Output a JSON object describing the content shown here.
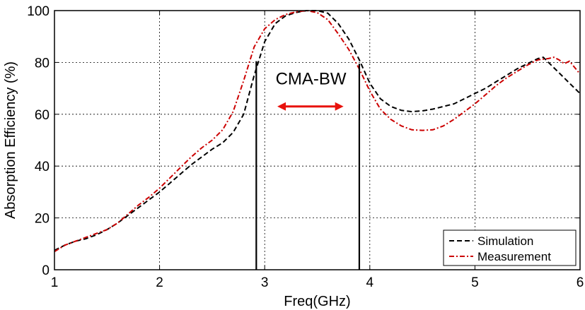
{
  "chart_data": {
    "type": "line",
    "xlabel": "Freq(GHz)",
    "ylabel": "Absorption Efficiency (%)",
    "xlim": [
      1,
      6
    ],
    "ylim": [
      0,
      100
    ],
    "xticks": [
      1,
      2,
      3,
      4,
      5,
      6
    ],
    "yticks": [
      0,
      20,
      40,
      60,
      80,
      100
    ],
    "xtick_labels": [
      "1",
      "2",
      "3",
      "4",
      "5",
      "6"
    ],
    "ytick_labels": [
      "0",
      "20",
      "40",
      "60",
      "80",
      "100"
    ],
    "grid": true,
    "legend": "bottom-right",
    "series": [
      {
        "name": "Simulation",
        "color": "#000000",
        "dash": "dashed",
        "x": [
          1.0,
          1.1,
          1.2,
          1.3,
          1.4,
          1.5,
          1.6,
          1.7,
          1.8,
          1.9,
          2.0,
          2.1,
          2.2,
          2.3,
          2.4,
          2.5,
          2.6,
          2.7,
          2.8,
          2.9,
          3.0,
          3.1,
          3.2,
          3.3,
          3.4,
          3.5,
          3.6,
          3.7,
          3.8,
          3.9,
          4.0,
          4.1,
          4.2,
          4.3,
          4.4,
          4.5,
          4.6,
          4.7,
          4.8,
          4.9,
          5.0,
          5.1,
          5.2,
          5.3,
          5.4,
          5.5,
          5.6,
          5.65,
          5.7,
          5.8,
          5.9,
          6.0
        ],
        "y": [
          7.5,
          9.5,
          11,
          12,
          13.5,
          15.5,
          18,
          21,
          24,
          27,
          30,
          33.5,
          37,
          40.5,
          43.5,
          46.5,
          49,
          53,
          60,
          75,
          88,
          95,
          98,
          99.3,
          100,
          100,
          99,
          95,
          89,
          81,
          72,
          66,
          63,
          61.5,
          61,
          61.3,
          62,
          63,
          64,
          66,
          68,
          70,
          72.5,
          75,
          77.5,
          79.5,
          81.5,
          82,
          80,
          76,
          72,
          68
        ]
      },
      {
        "name": "Measurement",
        "color": "#cc0000",
        "dash": "dashdot",
        "x": [
          1.0,
          1.1,
          1.2,
          1.3,
          1.4,
          1.5,
          1.6,
          1.7,
          1.8,
          1.9,
          2.0,
          2.1,
          2.2,
          2.3,
          2.4,
          2.5,
          2.6,
          2.7,
          2.8,
          2.9,
          3.0,
          3.1,
          3.2,
          3.3,
          3.4,
          3.5,
          3.6,
          3.7,
          3.8,
          3.9,
          4.0,
          4.1,
          4.2,
          4.3,
          4.4,
          4.5,
          4.6,
          4.7,
          4.8,
          4.9,
          5.0,
          5.1,
          5.2,
          5.3,
          5.4,
          5.5,
          5.6,
          5.7,
          5.75,
          5.8,
          5.85,
          5.9,
          6.0
        ],
        "y": [
          7,
          9.5,
          11,
          12.5,
          14,
          15.5,
          18,
          21.5,
          25,
          28,
          31.5,
          35.5,
          39.5,
          43.5,
          47,
          50,
          54,
          61,
          73,
          86,
          93,
          96.5,
          98.5,
          99.5,
          100,
          99.2,
          96.5,
          91,
          85,
          77.5,
          69,
          62,
          58,
          55.5,
          54,
          53.8,
          54,
          55.5,
          58,
          61,
          64,
          67.5,
          71,
          74,
          76.5,
          79,
          81,
          81.5,
          82,
          81,
          79.5,
          80.5,
          75.5
        ]
      }
    ],
    "annotations": [
      {
        "type": "vline",
        "x": 2.92,
        "y_top": 80.5
      },
      {
        "type": "vline",
        "x": 3.9,
        "y_top": 79.5
      },
      {
        "type": "double-arrow",
        "x1": 3.12,
        "x2": 3.75,
        "y": 63,
        "color": "#e8120c"
      },
      {
        "type": "text",
        "text": "CMA-BW",
        "x": 3.44,
        "y": 71.5
      }
    ]
  }
}
